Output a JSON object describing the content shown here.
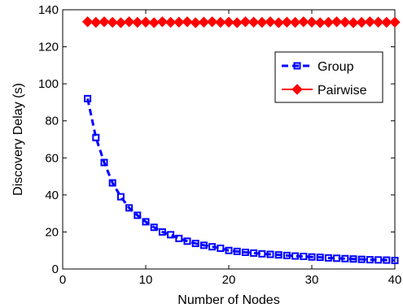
{
  "chart_data": {
    "type": "line",
    "xlabel": "Number of Nodes",
    "ylabel": "Discovery Delay (s)",
    "xlim": [
      0,
      40
    ],
    "ylim": [
      0,
      140
    ],
    "xticks": [
      "0",
      "10",
      "20",
      "30",
      "40"
    ],
    "yticks": [
      "0",
      "20",
      "40",
      "60",
      "80",
      "100",
      "120",
      "140"
    ],
    "grid": false,
    "legend_position": "top-right",
    "series": [
      {
        "name": "Group",
        "color": "#0000ff",
        "line_style": "dashed",
        "marker": "square",
        "x": [
          3,
          4,
          5,
          6,
          7,
          8,
          9,
          10,
          11,
          12,
          13,
          14,
          15,
          16,
          17,
          18,
          19,
          20,
          21,
          22,
          23,
          24,
          25,
          26,
          27,
          28,
          29,
          30,
          31,
          32,
          33,
          34,
          35,
          36,
          37,
          38,
          39,
          40
        ],
        "y": [
          92,
          71,
          57.5,
          46.5,
          39,
          33,
          29,
          25.5,
          22.5,
          20,
          18.5,
          16.5,
          15,
          13.8,
          12.8,
          12,
          11.2,
          10,
          9.5,
          9,
          8.6,
          8.2,
          7.9,
          7.6,
          7.3,
          7,
          6.8,
          6.5,
          6.3,
          6,
          5.8,
          5.6,
          5.4,
          5.2,
          5,
          4.9,
          4.8,
          4.6
        ]
      },
      {
        "name": "Pairwise",
        "color": "#ff0000",
        "line_style": "solid",
        "marker": "diamond",
        "x": [
          3,
          4,
          5,
          6,
          7,
          8,
          9,
          10,
          11,
          12,
          13,
          14,
          15,
          16,
          17,
          18,
          19,
          20,
          21,
          22,
          23,
          24,
          25,
          26,
          27,
          28,
          29,
          30,
          31,
          32,
          33,
          34,
          35,
          36,
          37,
          38,
          39,
          40
        ],
        "y": [
          133.5,
          133.2,
          133.5,
          133.2,
          133,
          133.5,
          133.2,
          133.3,
          133,
          133.5,
          133.2,
          133.3,
          133.5,
          133,
          133.3,
          133.5,
          133.2,
          133.3,
          133,
          133.5,
          133.3,
          133.2,
          133.5,
          133,
          133.3,
          133.2,
          133.5,
          133.3,
          133,
          133.2,
          133.5,
          133.3,
          133,
          133.2,
          133.5,
          133.3,
          133.2,
          133.3
        ]
      }
    ]
  }
}
